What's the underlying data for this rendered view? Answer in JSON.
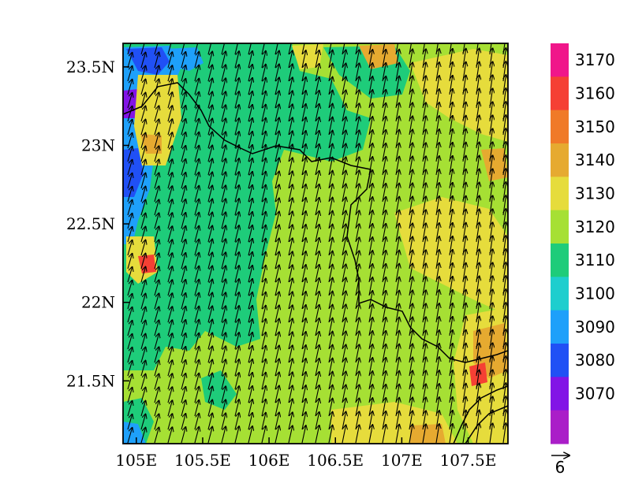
{
  "map": {
    "lon_range": [
      104.9,
      107.8
    ],
    "lat_range": [
      21.1,
      23.65
    ],
    "x_ticks": [
      {
        "value": 105.0,
        "label": "105E"
      },
      {
        "value": 105.5,
        "label": "105.5E"
      },
      {
        "value": 106.0,
        "label": "106E"
      },
      {
        "value": 106.5,
        "label": "106.5E"
      },
      {
        "value": 107.0,
        "label": "107E"
      },
      {
        "value": 107.5,
        "label": "107.5E"
      }
    ],
    "y_ticks": [
      {
        "value": 21.5,
        "label": "21.5N"
      },
      {
        "value": 22.0,
        "label": "22N"
      },
      {
        "value": 22.5,
        "label": "22.5N"
      },
      {
        "value": 23.0,
        "label": "23N"
      },
      {
        "value": 23.5,
        "label": "23.5N"
      }
    ],
    "field_levels": [
      3070,
      3080,
      3090,
      3100,
      3110,
      3120,
      3130,
      3140,
      3150,
      3160,
      3170
    ],
    "colorbar": {
      "labels": [
        "3170",
        "3160",
        "3150",
        "3140",
        "3130",
        "3120",
        "3110",
        "3100",
        "3090",
        "3080",
        "3070"
      ],
      "colors_top_to_bottom": [
        "#f0168a",
        "#f54034",
        "#f07a28",
        "#e6aa30",
        "#e6dc3c",
        "#a6e034",
        "#1ecc7a",
        "#1ecece",
        "#1ea0fa",
        "#2050f5",
        "#8214e6",
        "#aa1ec8"
      ]
    },
    "vector_reference": {
      "value_label": "6"
    },
    "wind_direction_hint": "southwest-to-northeast",
    "palette": {
      "green": "#a6e034",
      "teal": "#1ecc7a",
      "yellow": "#e6dc3c",
      "orange": "#e6aa30",
      "cyan": "#1ecece",
      "blue": "#1ea0fa",
      "purple": "#8214e6",
      "red": "#f54034"
    }
  }
}
